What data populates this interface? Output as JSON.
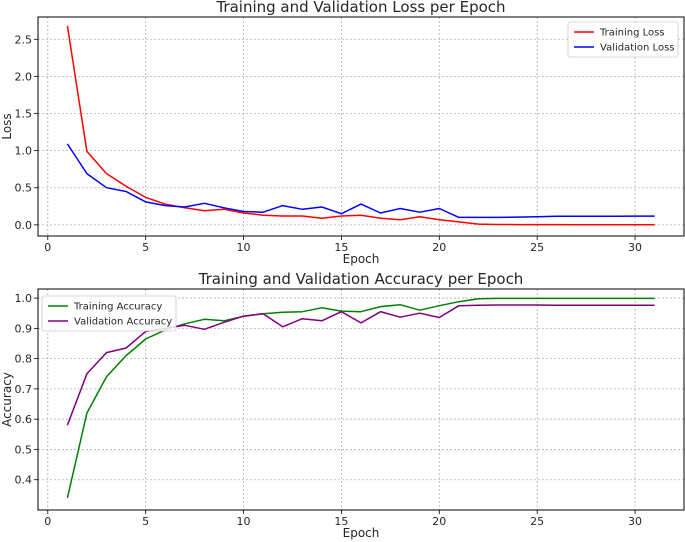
{
  "chart_data": [
    {
      "type": "line",
      "title": "Training and Validation Loss per Epoch",
      "xlabel": "Epoch",
      "ylabel": "Loss",
      "xlim": [
        -0.5,
        32.5
      ],
      "ylim": [
        -0.15,
        2.8
      ],
      "xticks": [
        0,
        5,
        10,
        15,
        20,
        25,
        30
      ],
      "yticks": [
        0.0,
        0.5,
        1.0,
        1.5,
        2.0,
        2.5
      ],
      "ytick_labels": [
        "0.0",
        "0.5",
        "1.0",
        "1.5",
        "2.0",
        "2.5"
      ],
      "grid": true,
      "legend_position": "top-right",
      "x": [
        1,
        2,
        3,
        4,
        5,
        6,
        7,
        8,
        9,
        10,
        11,
        12,
        13,
        14,
        15,
        16,
        17,
        18,
        19,
        20,
        21,
        22,
        23,
        24,
        25,
        26,
        27,
        28,
        29,
        30,
        31
      ],
      "series": [
        {
          "name": "Training Loss",
          "color": "#ff0000",
          "values": [
            2.68,
            0.99,
            0.69,
            0.52,
            0.37,
            0.28,
            0.23,
            0.19,
            0.21,
            0.16,
            0.13,
            0.12,
            0.12,
            0.09,
            0.12,
            0.13,
            0.09,
            0.07,
            0.11,
            0.07,
            0.04,
            0.01,
            0.005,
            0.004,
            0.003,
            0.003,
            0.002,
            0.002,
            0.002,
            0.002,
            0.002
          ]
        },
        {
          "name": "Validation Loss",
          "color": "#0000ff",
          "values": [
            1.09,
            0.69,
            0.5,
            0.45,
            0.31,
            0.26,
            0.24,
            0.29,
            0.23,
            0.18,
            0.17,
            0.26,
            0.21,
            0.24,
            0.15,
            0.28,
            0.16,
            0.22,
            0.17,
            0.22,
            0.1,
            0.1,
            0.1,
            0.105,
            0.11,
            0.115,
            0.115,
            0.115,
            0.115,
            0.118,
            0.118
          ]
        }
      ]
    },
    {
      "type": "line",
      "title": "Training and Validation Accuracy per Epoch",
      "xlabel": "Epoch",
      "ylabel": "Accuracy",
      "xlim": [
        -0.5,
        32.5
      ],
      "ylim": [
        0.3,
        1.03
      ],
      "xticks": [
        0,
        5,
        10,
        15,
        20,
        25,
        30
      ],
      "yticks": [
        0.4,
        0.5,
        0.6,
        0.7,
        0.8,
        0.9,
        1.0
      ],
      "ytick_labels": [
        "0.4",
        "0.5",
        "0.6",
        "0.7",
        "0.8",
        "0.9",
        "1.0"
      ],
      "grid": true,
      "legend_position": "top-left",
      "x": [
        1,
        2,
        3,
        4,
        5,
        6,
        7,
        8,
        9,
        10,
        11,
        12,
        13,
        14,
        15,
        16,
        17,
        18,
        19,
        20,
        21,
        22,
        23,
        24,
        25,
        26,
        27,
        28,
        29,
        30,
        31
      ],
      "series": [
        {
          "name": "Training Accuracy",
          "color": "#008000",
          "values": [
            0.34,
            0.62,
            0.74,
            0.81,
            0.865,
            0.895,
            0.915,
            0.93,
            0.925,
            0.94,
            0.948,
            0.953,
            0.955,
            0.968,
            0.957,
            0.955,
            0.972,
            0.978,
            0.96,
            0.975,
            0.988,
            0.998,
            0.999,
            0.999,
            0.999,
            0.999,
            0.999,
            0.999,
            0.999,
            0.999,
            0.999
          ]
        },
        {
          "name": "Validation Accuracy",
          "color": "#800080",
          "values": [
            0.58,
            0.75,
            0.82,
            0.835,
            0.89,
            0.9,
            0.91,
            0.897,
            0.92,
            0.94,
            0.948,
            0.905,
            0.932,
            0.925,
            0.955,
            0.918,
            0.955,
            0.937,
            0.95,
            0.936,
            0.975,
            0.976,
            0.977,
            0.977,
            0.977,
            0.976,
            0.976,
            0.976,
            0.976,
            0.976,
            0.976
          ]
        }
      ]
    }
  ]
}
